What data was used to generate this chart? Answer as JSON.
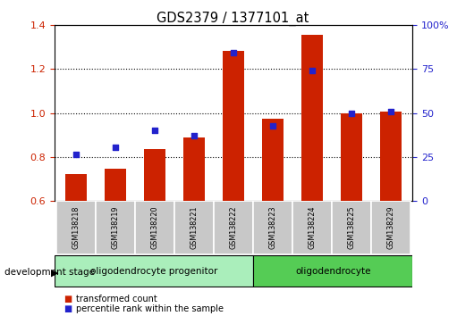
{
  "title": "GDS2379 / 1377101_at",
  "samples": [
    "GSM138218",
    "GSM138219",
    "GSM138220",
    "GSM138221",
    "GSM138222",
    "GSM138223",
    "GSM138224",
    "GSM138225",
    "GSM138229"
  ],
  "red_values": [
    0.72,
    0.745,
    0.835,
    0.89,
    1.285,
    0.975,
    1.355,
    1.0,
    1.005
  ],
  "blue_values": [
    0.81,
    0.845,
    0.92,
    0.895,
    1.275,
    0.94,
    1.195,
    1.0,
    1.005
  ],
  "ylim_left": [
    0.6,
    1.4
  ],
  "ylim_right": [
    0,
    100
  ],
  "yticks_left": [
    0.6,
    0.8,
    1.0,
    1.2,
    1.4
  ],
  "yticks_right": [
    0,
    25,
    50,
    75,
    100
  ],
  "ytick_labels_right": [
    "0",
    "25",
    "50",
    "75",
    "100%"
  ],
  "grid_lines": [
    0.8,
    1.0,
    1.2
  ],
  "red_color": "#cc2200",
  "blue_color": "#2222cc",
  "bar_width": 0.55,
  "baseline": 0.6,
  "groups": [
    {
      "label": "oligodendrocyte progenitor",
      "indices": [
        0,
        1,
        2,
        3,
        4
      ],
      "color": "#aaeebb"
    },
    {
      "label": "oligodendrocyte",
      "indices": [
        5,
        6,
        7,
        8
      ],
      "color": "#55cc55"
    }
  ],
  "legend_items": [
    {
      "label": "transformed count",
      "color": "#cc2200"
    },
    {
      "label": "percentile rank within the sample",
      "color": "#2222cc"
    }
  ],
  "stage_label": "development stage",
  "tick_area_color": "#c8c8c8",
  "tick_border_color": "#ffffff"
}
